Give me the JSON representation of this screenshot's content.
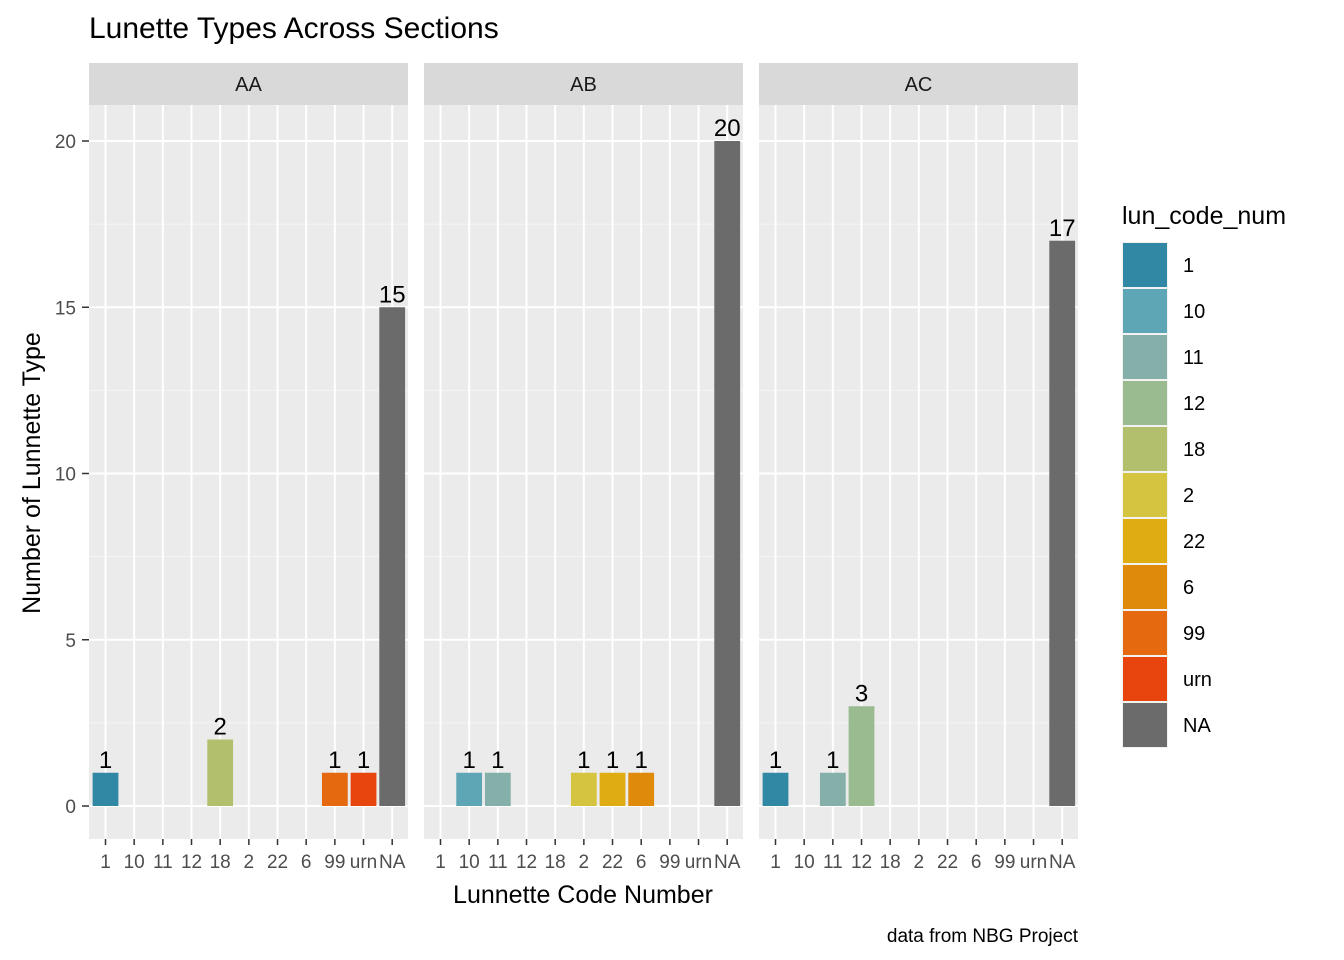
{
  "chart_data": {
    "type": "bar",
    "title": "Lunette Types Across Sections",
    "xlabel": "Lunnette Code Number",
    "ylabel": "Number of Lunnette Type",
    "caption": "data from NBG Project",
    "ylim": [
      0,
      20
    ],
    "yticks": [
      "0",
      "5",
      "10",
      "15",
      "20"
    ],
    "categories": [
      "1",
      "10",
      "11",
      "12",
      "18",
      "2",
      "22",
      "6",
      "99",
      "urn",
      "NA"
    ],
    "legend": {
      "title": "lun_code_num",
      "position": "right",
      "items": [
        {
          "label": "1",
          "color": "#3188a5"
        },
        {
          "label": "10",
          "color": "#5ea5b5"
        },
        {
          "label": "11",
          "color": "#85b0a9"
        },
        {
          "label": "12",
          "color": "#9aba8f"
        },
        {
          "label": "18",
          "color": "#b2c06e"
        },
        {
          "label": "2",
          "color": "#d4c440"
        },
        {
          "label": "22",
          "color": "#dfac11"
        },
        {
          "label": "6",
          "color": "#e08a0b"
        },
        {
          "label": "99",
          "color": "#e5690e"
        },
        {
          "label": "urn",
          "color": "#e8450e"
        },
        {
          "label": "NA",
          "color": "#6b6b6b"
        }
      ]
    },
    "facets": [
      {
        "name": "AA",
        "values": [
          1,
          0,
          0,
          0,
          2,
          0,
          0,
          0,
          1,
          1,
          15
        ]
      },
      {
        "name": "AB",
        "values": [
          0,
          1,
          1,
          0,
          0,
          1,
          1,
          1,
          0,
          0,
          20
        ]
      },
      {
        "name": "AC",
        "values": [
          1,
          0,
          1,
          3,
          0,
          0,
          0,
          0,
          0,
          0,
          17
        ]
      }
    ],
    "grid": true
  }
}
